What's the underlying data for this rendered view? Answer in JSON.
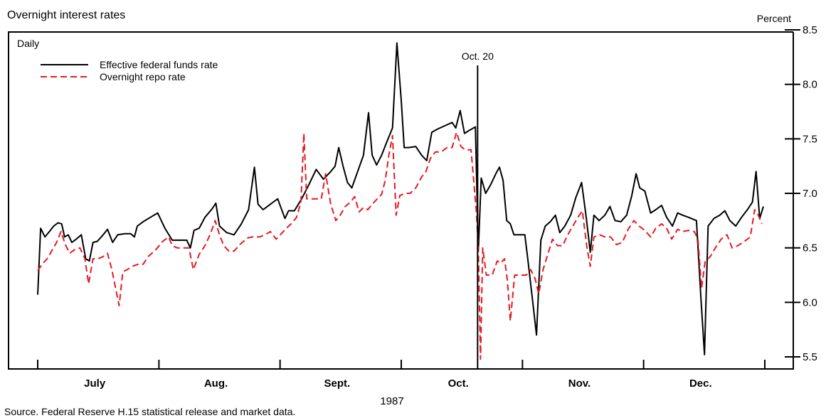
{
  "chart_data": {
    "type": "line",
    "title": "Overnight interest rates",
    "subtitle": "Daily",
    "ylabel": "Percent",
    "xlabel": "1987",
    "ylim": [
      5.5,
      8.5
    ],
    "y_ticks": [
      "5.5",
      "6.0",
      "6.5",
      "7.0",
      "7.5",
      "8.0",
      "8.5"
    ],
    "x_range": [
      0,
      100
    ],
    "month_boundaries": [
      0,
      16.67,
      33.33,
      50,
      66.67,
      83.33,
      100
    ],
    "month_labels": [
      "July",
      "Aug.",
      "Sept.",
      "Oct.",
      "Nov.",
      "Dec."
    ],
    "annotation": {
      "label": "Oct. 20",
      "x": 60.5
    },
    "legend_position": "top-left",
    "source": "Source. Federal Reserve H.15 statistical release and market data.",
    "series": [
      {
        "name": "Effective federal funds rate",
        "color": "#000000",
        "style": "solid",
        "points": [
          [
            0,
            6.07
          ],
          [
            0.4,
            6.68
          ],
          [
            1.0,
            6.6
          ],
          [
            1.6,
            6.65
          ],
          [
            2.2,
            6.7
          ],
          [
            2.8,
            6.73
          ],
          [
            3.3,
            6.72
          ],
          [
            3.7,
            6.6
          ],
          [
            4.2,
            6.62
          ],
          [
            4.7,
            6.55
          ],
          [
            5.3,
            6.58
          ],
          [
            6.0,
            6.62
          ],
          [
            6.6,
            6.4
          ],
          [
            7.1,
            6.38
          ],
          [
            7.6,
            6.55
          ],
          [
            8.2,
            6.56
          ],
          [
            9.0,
            6.62
          ],
          [
            9.6,
            6.67
          ],
          [
            10.3,
            6.55
          ],
          [
            11.0,
            6.62
          ],
          [
            12.0,
            6.63
          ],
          [
            12.8,
            6.63
          ],
          [
            13.3,
            6.6
          ],
          [
            13.7,
            6.7
          ],
          [
            14.5,
            6.74
          ],
          [
            15.5,
            6.78
          ],
          [
            16.5,
            6.82
          ],
          [
            17.5,
            6.68
          ],
          [
            18.5,
            6.57
          ],
          [
            19.5,
            6.57
          ],
          [
            20.5,
            6.57
          ],
          [
            21.0,
            6.5
          ],
          [
            21.5,
            6.66
          ],
          [
            22.2,
            6.68
          ],
          [
            23.0,
            6.78
          ],
          [
            24.0,
            6.86
          ],
          [
            24.5,
            6.91
          ],
          [
            25.0,
            6.7
          ],
          [
            26.0,
            6.64
          ],
          [
            27.0,
            6.62
          ],
          [
            28.0,
            6.72
          ],
          [
            29.0,
            6.85
          ],
          [
            29.8,
            7.24
          ],
          [
            30.3,
            6.9
          ],
          [
            31.0,
            6.85
          ],
          [
            32.0,
            6.9
          ],
          [
            33.0,
            6.95
          ],
          [
            34.0,
            6.77
          ],
          [
            34.5,
            6.84
          ],
          [
            35.3,
            6.84
          ],
          [
            36.3,
            6.95
          ],
          [
            37.3,
            7.08
          ],
          [
            38.3,
            7.22
          ],
          [
            39.3,
            7.13
          ],
          [
            40.3,
            7.2
          ],
          [
            40.9,
            7.25
          ],
          [
            41.4,
            7.42
          ],
          [
            42.0,
            7.25
          ],
          [
            42.6,
            7.1
          ],
          [
            43.2,
            7.05
          ],
          [
            44.0,
            7.2
          ],
          [
            44.8,
            7.35
          ],
          [
            45.5,
            7.74
          ],
          [
            46.0,
            7.35
          ],
          [
            46.6,
            7.26
          ],
          [
            47.3,
            7.35
          ],
          [
            48.0,
            7.47
          ],
          [
            48.8,
            7.6
          ],
          [
            49.4,
            8.38
          ],
          [
            50.0,
            7.85
          ],
          [
            50.4,
            7.42
          ],
          [
            51.0,
            7.42
          ],
          [
            52.0,
            7.43
          ],
          [
            52.8,
            7.35
          ],
          [
            53.5,
            7.3
          ],
          [
            54.2,
            7.56
          ],
          [
            55.0,
            7.59
          ],
          [
            56.0,
            7.62
          ],
          [
            57.0,
            7.65
          ],
          [
            57.5,
            7.6
          ],
          [
            58.1,
            7.76
          ],
          [
            58.7,
            7.55
          ],
          [
            59.4,
            7.58
          ],
          [
            60.2,
            7.61
          ],
          [
            60.6,
            6.47
          ],
          [
            61.0,
            7.14
          ],
          [
            61.6,
            7.0
          ],
          [
            62.3,
            7.08
          ],
          [
            63.0,
            7.18
          ],
          [
            63.5,
            7.24
          ],
          [
            64.0,
            7.12
          ],
          [
            64.5,
            6.75
          ],
          [
            65.0,
            6.72
          ],
          [
            65.5,
            6.62
          ],
          [
            66.1,
            6.62
          ],
          [
            67.0,
            6.62
          ],
          [
            67.4,
            6.4
          ],
          [
            68.0,
            6.05
          ],
          [
            68.6,
            5.7
          ],
          [
            69.2,
            6.57
          ],
          [
            69.8,
            6.7
          ],
          [
            70.5,
            6.74
          ],
          [
            71.2,
            6.8
          ],
          [
            71.8,
            6.64
          ],
          [
            72.5,
            6.7
          ],
          [
            73.3,
            6.8
          ],
          [
            74.0,
            6.96
          ],
          [
            74.8,
            7.1
          ],
          [
            75.4,
            6.8
          ],
          [
            76.0,
            6.46
          ],
          [
            76.5,
            6.8
          ],
          [
            77.2,
            6.75
          ],
          [
            78.0,
            6.8
          ],
          [
            78.7,
            6.88
          ],
          [
            79.4,
            6.75
          ],
          [
            80.2,
            6.74
          ],
          [
            81.0,
            6.8
          ],
          [
            81.7,
            6.98
          ],
          [
            82.3,
            7.18
          ],
          [
            82.8,
            7.05
          ],
          [
            83.5,
            7.02
          ],
          [
            84.3,
            6.82
          ],
          [
            85.0,
            6.85
          ],
          [
            85.8,
            6.89
          ],
          [
            86.5,
            6.78
          ],
          [
            87.3,
            6.7
          ],
          [
            88.0,
            6.82
          ],
          [
            88.7,
            6.8
          ],
          [
            89.5,
            6.78
          ],
          [
            90.6,
            6.75
          ],
          [
            91.2,
            6.05
          ],
          [
            91.7,
            5.52
          ],
          [
            92.2,
            6.7
          ],
          [
            93.0,
            6.77
          ],
          [
            93.8,
            6.8
          ],
          [
            94.5,
            6.84
          ],
          [
            95.2,
            6.75
          ],
          [
            96.0,
            6.7
          ],
          [
            96.8,
            6.78
          ],
          [
            97.6,
            6.85
          ],
          [
            98.3,
            6.92
          ],
          [
            98.8,
            7.2
          ],
          [
            99.3,
            6.77
          ],
          [
            99.8,
            6.88
          ]
        ]
      },
      {
        "name": "Overnight repo rate",
        "color": "#e31b23",
        "style": "dashed",
        "points": [
          [
            0,
            6.29
          ],
          [
            0.6,
            6.35
          ],
          [
            1.3,
            6.4
          ],
          [
            2.0,
            6.48
          ],
          [
            2.6,
            6.55
          ],
          [
            3.2,
            6.65
          ],
          [
            3.8,
            6.53
          ],
          [
            4.4,
            6.45
          ],
          [
            5.0,
            6.48
          ],
          [
            5.8,
            6.5
          ],
          [
            6.5,
            6.4
          ],
          [
            7.0,
            6.17
          ],
          [
            7.6,
            6.4
          ],
          [
            8.3,
            6.4
          ],
          [
            9.0,
            6.42
          ],
          [
            9.6,
            6.45
          ],
          [
            10.2,
            6.3
          ],
          [
            10.8,
            6.1
          ],
          [
            11.2,
            5.97
          ],
          [
            11.7,
            6.28
          ],
          [
            12.3,
            6.3
          ],
          [
            13.0,
            6.33
          ],
          [
            13.8,
            6.35
          ],
          [
            14.5,
            6.35
          ],
          [
            15.2,
            6.42
          ],
          [
            16.2,
            6.48
          ],
          [
            17.2,
            6.56
          ],
          [
            18.0,
            6.6
          ],
          [
            18.5,
            6.52
          ],
          [
            19.2,
            6.5
          ],
          [
            20.0,
            6.5
          ],
          [
            20.8,
            6.5
          ],
          [
            21.4,
            6.3
          ],
          [
            22.2,
            6.44
          ],
          [
            23.0,
            6.52
          ],
          [
            23.7,
            6.62
          ],
          [
            24.4,
            6.75
          ],
          [
            25.0,
            6.62
          ],
          [
            25.6,
            6.52
          ],
          [
            26.3,
            6.47
          ],
          [
            27.0,
            6.47
          ],
          [
            27.8,
            6.53
          ],
          [
            28.8,
            6.59
          ],
          [
            29.5,
            6.6
          ],
          [
            30.5,
            6.6
          ],
          [
            31.3,
            6.62
          ],
          [
            32.0,
            6.65
          ],
          [
            32.8,
            6.58
          ],
          [
            33.5,
            6.63
          ],
          [
            34.2,
            6.68
          ],
          [
            35.0,
            6.73
          ],
          [
            35.6,
            6.78
          ],
          [
            36.2,
            6.92
          ],
          [
            36.6,
            7.55
          ],
          [
            37.0,
            6.95
          ],
          [
            38.0,
            6.95
          ],
          [
            39.0,
            6.95
          ],
          [
            39.6,
            7.18
          ],
          [
            40.3,
            6.9
          ],
          [
            41.0,
            6.75
          ],
          [
            41.6,
            6.8
          ],
          [
            42.3,
            6.88
          ],
          [
            43.0,
            6.92
          ],
          [
            43.6,
            6.97
          ],
          [
            44.2,
            6.83
          ],
          [
            44.8,
            6.87
          ],
          [
            45.4,
            6.85
          ],
          [
            46.0,
            6.9
          ],
          [
            46.7,
            6.95
          ],
          [
            47.3,
            6.99
          ],
          [
            47.8,
            7.12
          ],
          [
            48.3,
            7.35
          ],
          [
            48.8,
            7.53
          ],
          [
            49.3,
            6.8
          ],
          [
            49.8,
            6.98
          ],
          [
            50.5,
            7.0
          ],
          [
            51.2,
            7.0
          ],
          [
            52.0,
            7.05
          ],
          [
            52.8,
            7.15
          ],
          [
            53.4,
            7.2
          ],
          [
            54.0,
            7.32
          ],
          [
            54.7,
            7.38
          ],
          [
            55.5,
            7.38
          ],
          [
            56.3,
            7.42
          ],
          [
            57.0,
            7.42
          ],
          [
            57.6,
            7.56
          ],
          [
            58.2,
            7.43
          ],
          [
            58.8,
            7.4
          ],
          [
            59.6,
            7.4
          ],
          [
            60.3,
            6.85
          ],
          [
            60.6,
            6.5
          ],
          [
            60.9,
            5.48
          ],
          [
            61.2,
            6.5
          ],
          [
            61.7,
            6.25
          ],
          [
            62.5,
            6.25
          ],
          [
            63.2,
            6.38
          ],
          [
            63.7,
            6.36
          ],
          [
            64.2,
            6.4
          ],
          [
            64.6,
            6.2
          ],
          [
            65.0,
            5.83
          ],
          [
            65.6,
            6.25
          ],
          [
            66.4,
            6.25
          ],
          [
            67.2,
            6.25
          ],
          [
            67.8,
            6.3
          ],
          [
            68.4,
            6.22
          ],
          [
            68.9,
            6.08
          ],
          [
            69.5,
            6.3
          ],
          [
            70.2,
            6.45
          ],
          [
            70.8,
            6.58
          ],
          [
            71.5,
            6.52
          ],
          [
            72.2,
            6.52
          ],
          [
            72.9,
            6.62
          ],
          [
            73.6,
            6.7
          ],
          [
            74.3,
            6.78
          ],
          [
            74.9,
            6.84
          ],
          [
            75.5,
            6.52
          ],
          [
            76.0,
            6.33
          ],
          [
            76.5,
            6.6
          ],
          [
            77.3,
            6.62
          ],
          [
            78.0,
            6.6
          ],
          [
            78.8,
            6.6
          ],
          [
            79.6,
            6.53
          ],
          [
            80.4,
            6.55
          ],
          [
            81.2,
            6.67
          ],
          [
            82.0,
            6.75
          ],
          [
            82.7,
            6.7
          ],
          [
            83.5,
            6.66
          ],
          [
            84.3,
            6.6
          ],
          [
            85.0,
            6.68
          ],
          [
            85.8,
            6.72
          ],
          [
            86.5,
            6.68
          ],
          [
            87.2,
            6.58
          ],
          [
            88.0,
            6.67
          ],
          [
            88.7,
            6.65
          ],
          [
            89.5,
            6.66
          ],
          [
            90.3,
            6.65
          ],
          [
            90.8,
            6.58
          ],
          [
            91.3,
            6.13
          ],
          [
            91.8,
            6.38
          ],
          [
            92.5,
            6.42
          ],
          [
            93.2,
            6.5
          ],
          [
            94.0,
            6.58
          ],
          [
            94.8,
            6.62
          ],
          [
            95.5,
            6.5
          ],
          [
            96.3,
            6.52
          ],
          [
            97.2,
            6.56
          ],
          [
            98.0,
            6.6
          ],
          [
            98.6,
            6.85
          ],
          [
            99.1,
            6.8
          ],
          [
            99.6,
            6.72
          ]
        ]
      }
    ]
  }
}
